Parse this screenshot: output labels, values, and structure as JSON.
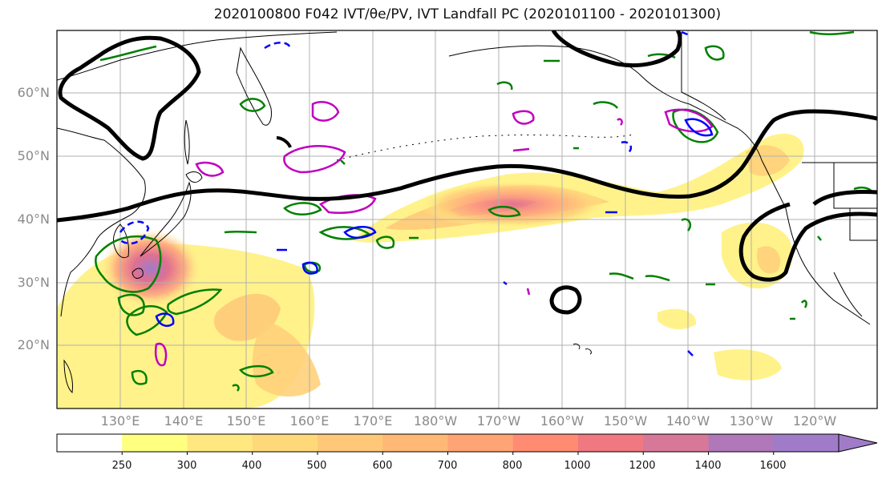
{
  "title": "2020100800 F042 IVT/θe/PV, IVT Landfall PC (2020101100 - 2020101300)",
  "map": {
    "lat_labels": [
      "60°N",
      "50°N",
      "40°N",
      "30°N",
      "20°N"
    ],
    "lon_labels": [
      "130°E",
      "140°E",
      "150°E",
      "160°E",
      "170°E",
      "180°W",
      "170°W",
      "160°W",
      "150°W",
      "140°W",
      "130°W",
      "120°W"
    ],
    "lon_extent": [
      120,
      250
    ],
    "lat_extent": [
      10,
      70
    ],
    "contour_colors": {
      "landfall_pc": "#000000",
      "theta_e": "#008000",
      "pv_positive": "#0000ff",
      "pv_other": "#c000c0",
      "coast": "#000000"
    }
  },
  "colorbar": {
    "tick_labels": [
      "250",
      "300",
      "400",
      "500",
      "600",
      "700",
      "800",
      "1000",
      "1200",
      "1400",
      "1600"
    ],
    "levels": [
      250,
      300,
      400,
      500,
      600,
      700,
      800,
      1000,
      1200,
      1400,
      1600
    ],
    "colors": [
      "#ffffff",
      "#ffff80",
      "#ffe880",
      "#ffd87a",
      "#ffc878",
      "#ffb876",
      "#ffa474",
      "#ff8c72",
      "#f07880",
      "#d87898",
      "#b078b8",
      "#a07cc8"
    ]
  }
}
